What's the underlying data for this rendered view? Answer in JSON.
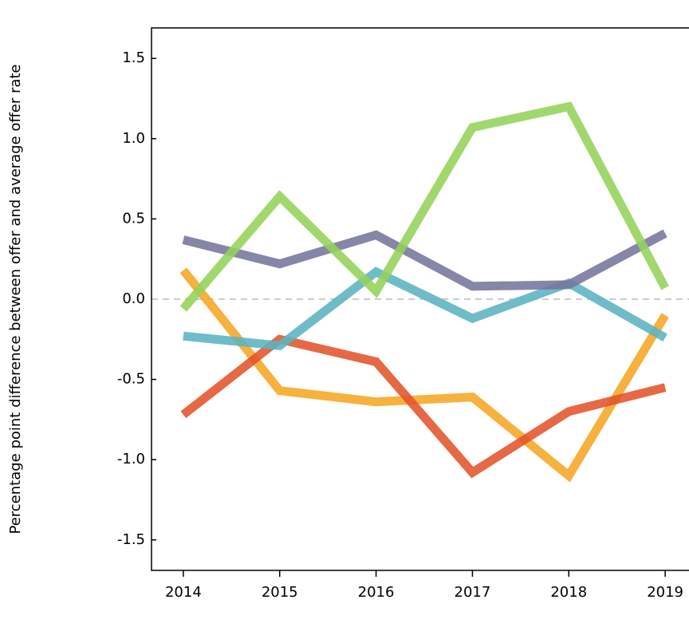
{
  "chart_data": {
    "type": "line",
    "y_label": "Percentage point difference between offer and average offer rate",
    "x": [
      2014,
      2015,
      2016,
      2017,
      2018,
      2019
    ],
    "xlim": [
      2013.67,
      2019.33
    ],
    "xticks": [
      2014,
      2015,
      2016,
      2017,
      2018,
      2019
    ],
    "ylim": [
      -1.69,
      1.69
    ],
    "yticks": [
      -1.5,
      {
        "value": -1,
        "label": "-1.0"
      },
      -0.5,
      {
        "value": 0,
        "label": "0.0"
      },
      0.5,
      {
        "value": 1,
        "label": "1.0"
      },
      1.5
    ],
    "zero_line": true,
    "series": [
      {
        "color": "#f5a623",
        "values": [
          0.18,
          -0.57,
          -0.64,
          -0.61,
          -1.1,
          -0.1
        ]
      },
      {
        "color": "#e2532a",
        "values": [
          -0.72,
          -0.25,
          -0.39,
          -1.08,
          -0.7,
          -0.55
        ]
      },
      {
        "color": "#5ab3c0",
        "values": [
          -0.23,
          -0.29,
          0.17,
          -0.12,
          0.1,
          -0.24
        ]
      },
      {
        "color": "#75759c",
        "values": [
          0.37,
          0.22,
          0.4,
          0.08,
          0.09,
          0.41
        ]
      },
      {
        "color": "#94d35a",
        "values": [
          -0.06,
          0.64,
          0.05,
          1.07,
          1.2,
          0.07
        ]
      }
    ]
  }
}
